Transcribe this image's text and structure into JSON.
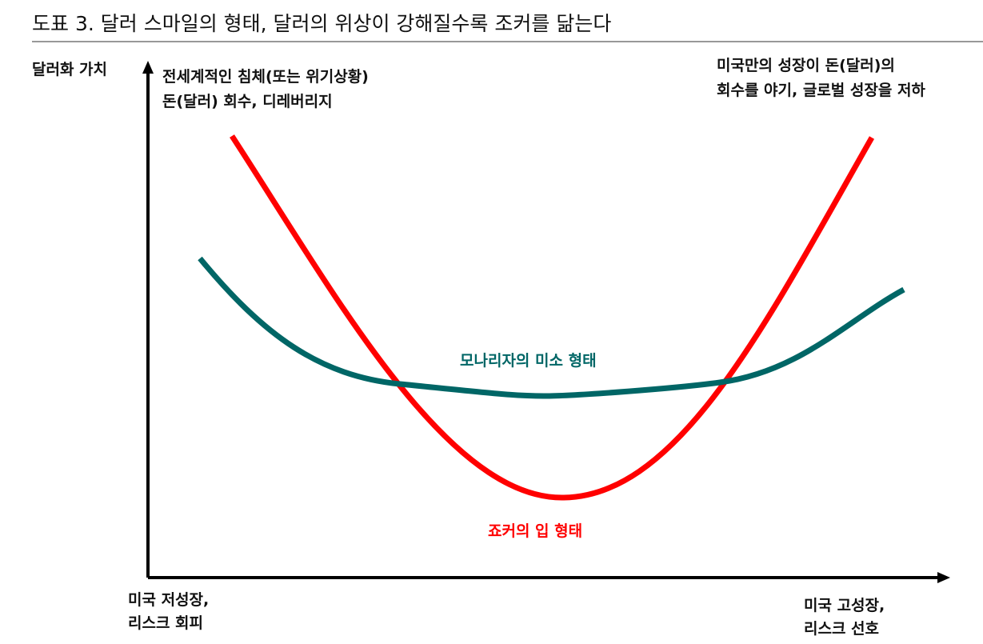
{
  "header": {
    "title": "도표 3. 달러 스마일의 형태, 달러의 위상이 강해질수록 조커를 닮는다"
  },
  "axes": {
    "y_label": "달러화 가치",
    "x_left": [
      "미국 저성장,",
      "리스크 회피"
    ],
    "x_right": [
      "미국 고성장,",
      "리스크 선호"
    ]
  },
  "annotations": {
    "top_left": [
      "전세계적인 침체(또는 위기상황)",
      "돈(달러) 회수, 디레버리지"
    ],
    "top_right": [
      "미국만의 성장이 돈(달러)의",
      "회수를 야기, 글로벌 성장을 저하"
    ]
  },
  "curves": {
    "mona_lisa": "모나리자의 미소 형태",
    "joker": "죠커의 입 형태"
  }
}
